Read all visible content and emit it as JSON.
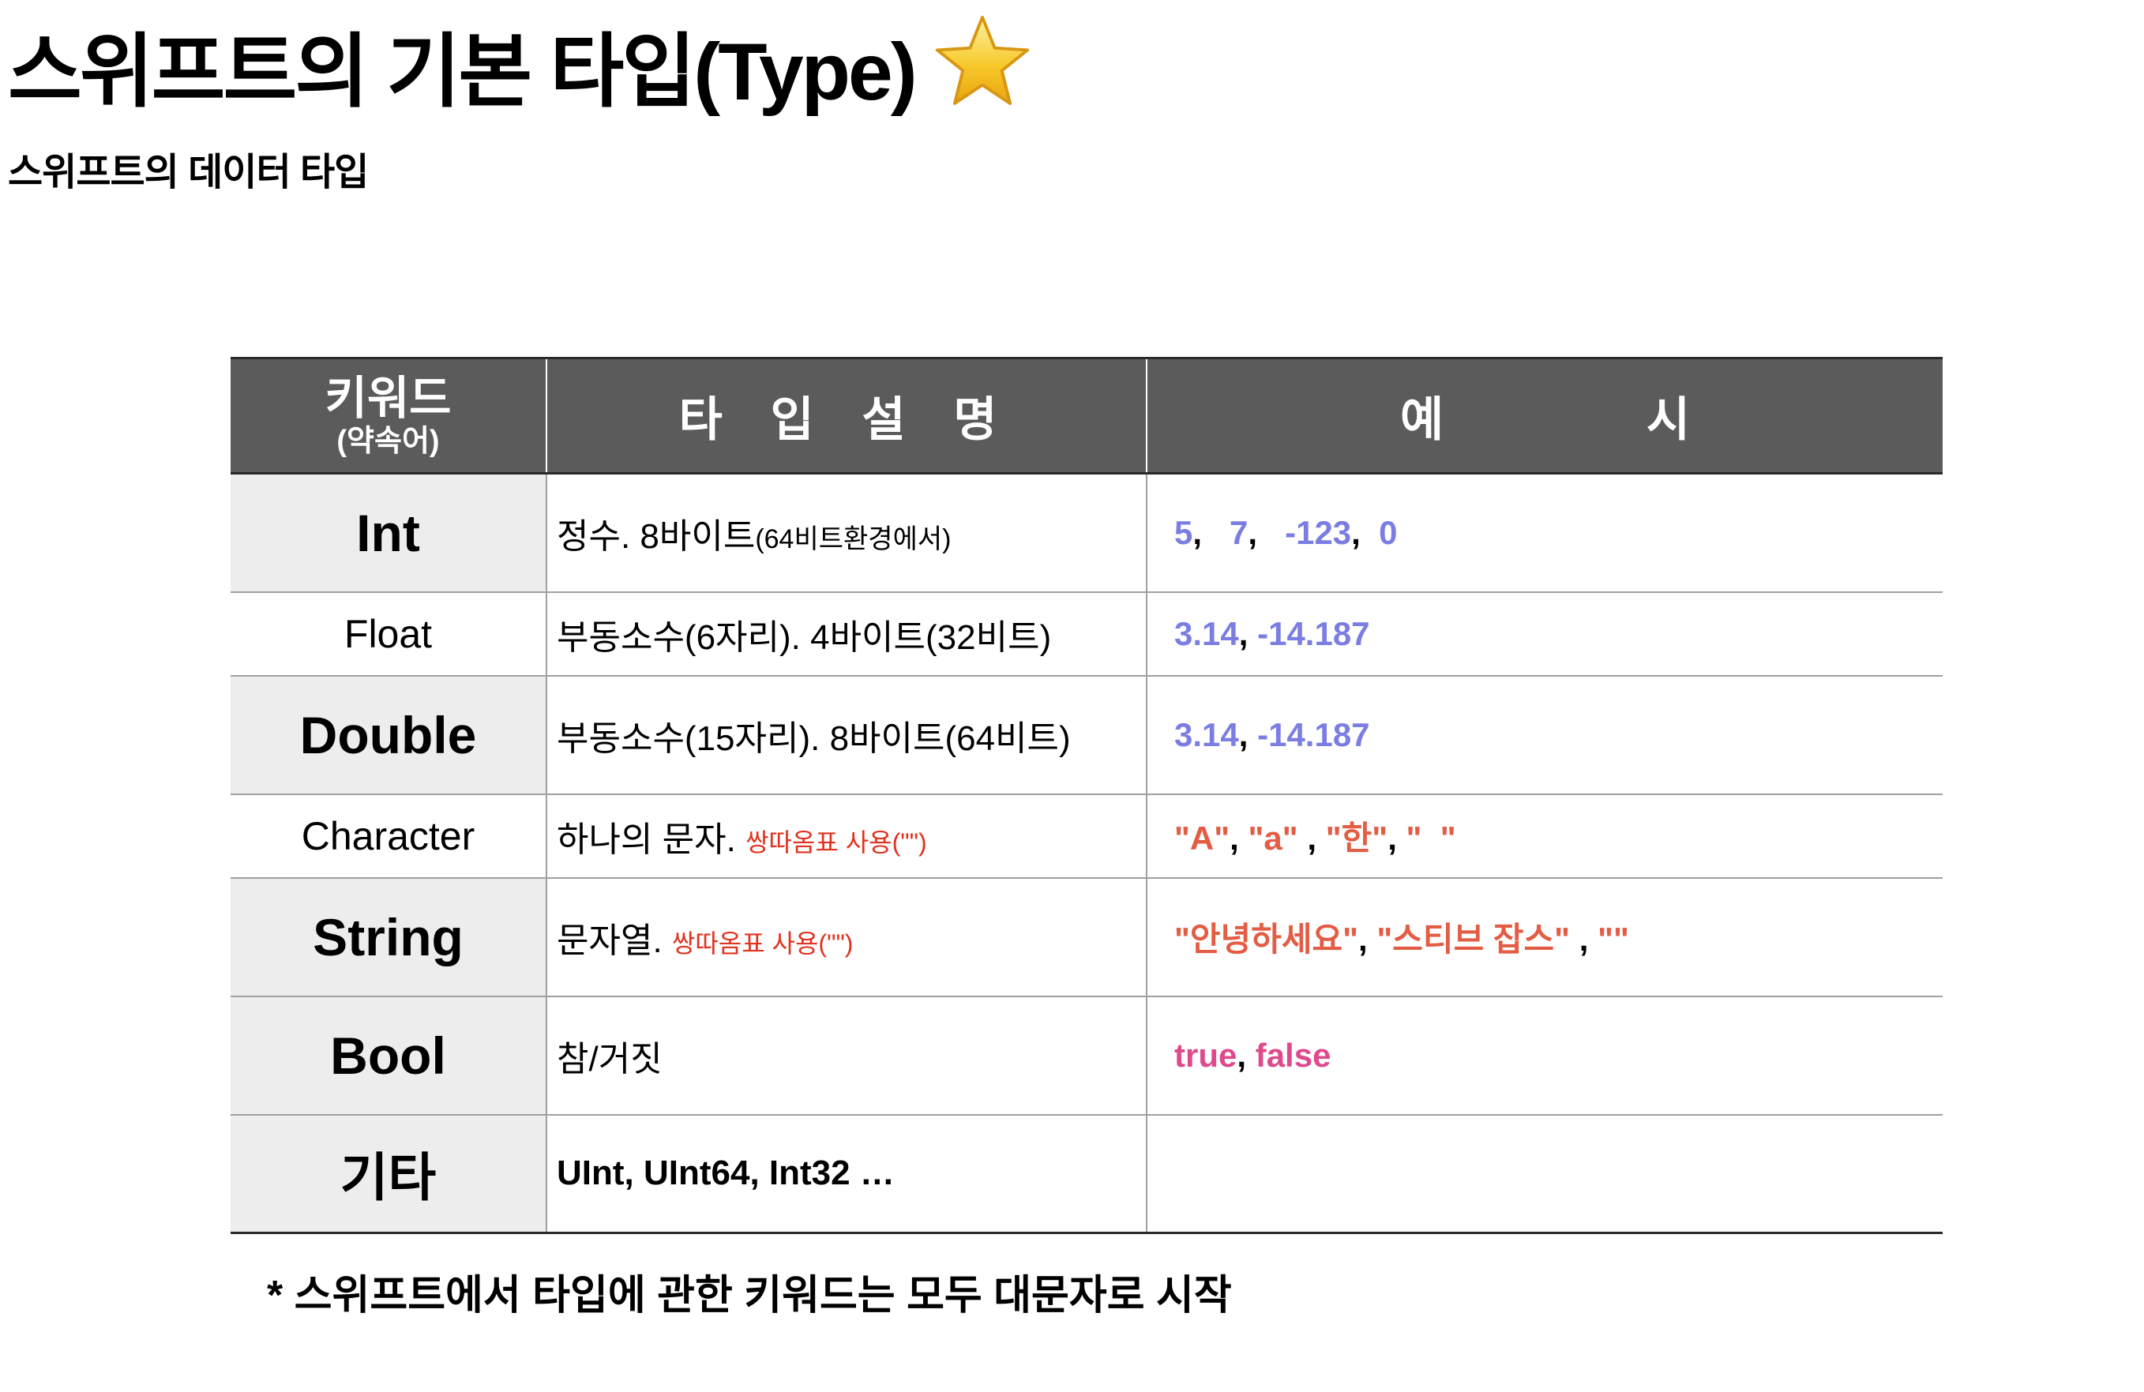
{
  "page": {
    "title": "스위프트의 기본 타입(Type)",
    "subtitle": "스위프트의 데이터 타입",
    "footer": "* 스위프트에서 타입에 관한 키워드는 모두 대문자로 시작"
  },
  "icons": {
    "title_icon": "star-emoji-icon"
  },
  "colors": {
    "header_bg": "#5b5b5b",
    "keyword_cell_bg": "#ededed",
    "number_example": "#7a7ee2",
    "string_example": "#e35c44",
    "bool_example": "#de4a8c",
    "note_red": "#e0321e"
  },
  "table": {
    "headers": {
      "keyword": "키워드",
      "keyword_sub": "(약속어)",
      "description": "타 입  설 명",
      "example": "예  시"
    },
    "rows": [
      {
        "keyword": "Int",
        "desc": "정수. 8바이트",
        "desc_small": "(64비트환경에서)",
        "examples": [
          "5",
          "7",
          "-123",
          "0"
        ]
      },
      {
        "keyword": "Float",
        "desc": "부동소수(6자리). 4바이트(32비트)",
        "examples": [
          "3.14",
          "-14.187"
        ]
      },
      {
        "keyword": "Double",
        "desc": "부동소수(15자리). 8바이트(64비트)",
        "examples": [
          "3.14",
          "-14.187"
        ]
      },
      {
        "keyword": "Character",
        "desc": "하나의 문자.",
        "note": "쌍따옴표 사용(\"\")",
        "examples": [
          "\"A\"",
          "\"a\"",
          "\"한\"",
          "\"  \""
        ]
      },
      {
        "keyword": "String",
        "desc": "문자열.",
        "note": "쌍따옴표 사용(\"\")",
        "examples": [
          "\"안녕하세요\"",
          "\"스티브 잡스\"",
          "\"\""
        ]
      },
      {
        "keyword": "Bool",
        "desc": "참/거짓",
        "examples": [
          "true",
          "false"
        ]
      },
      {
        "keyword": "기타",
        "desc": "UInt, UInt64, Int32 …",
        "examples": []
      }
    ]
  }
}
